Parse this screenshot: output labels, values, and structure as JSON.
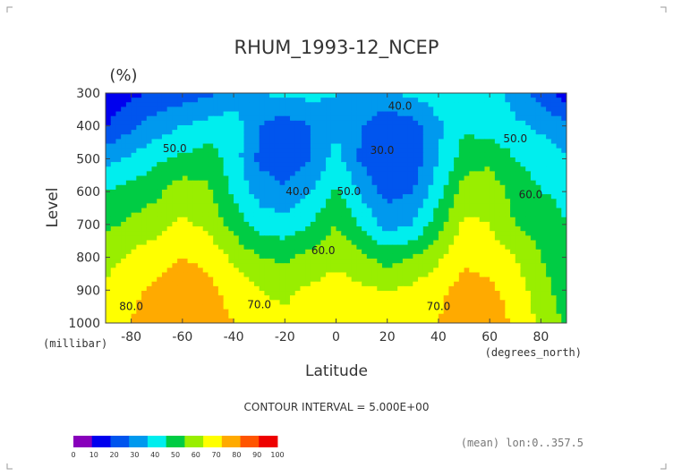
{
  "chart_data": {
    "type": "heatmap",
    "title": "RHUM_1993-12_NCEP",
    "unit_label": "(%)",
    "xlabel": "Latitude",
    "ylabel": "Level",
    "x_units": "(degrees_north)",
    "y_units": "(millibar)",
    "xlim": [
      -90,
      90
    ],
    "ylim": [
      1000,
      300
    ],
    "x_ticks": [
      "-80",
      "-60",
      "-40",
      "-20",
      "0",
      "20",
      "40",
      "60",
      "80"
    ],
    "x_tick_values": [
      -80,
      -60,
      -40,
      -20,
      0,
      20,
      40,
      60,
      80
    ],
    "y_ticks": [
      "300",
      "400",
      "500",
      "600",
      "700",
      "800",
      "900",
      "1000"
    ],
    "y_tick_values": [
      300,
      400,
      500,
      600,
      700,
      800,
      900,
      1000
    ],
    "contour_interval_text": "CONTOUR INTERVAL = 5.000E+00",
    "footnote": "(mean) lon:0..357.5",
    "grid": false,
    "levels": [
      0,
      10,
      20,
      30,
      40,
      50,
      60,
      70,
      80,
      90,
      100
    ],
    "colorbar_labels": [
      "0",
      "10",
      "20",
      "30",
      "40",
      "50",
      "60",
      "70",
      "80",
      "90",
      "100"
    ],
    "colors": [
      "#8800bb",
      "#0000ee",
      "#0055ee",
      "#0099ee",
      "#00eeee",
      "#00cc44",
      "#99ee00",
      "#ffff00",
      "#ffaa00",
      "#ff5500",
      "#ee0000"
    ],
    "x": [
      -90,
      -80,
      -70,
      -60,
      -50,
      -40,
      -30,
      -20,
      -10,
      0,
      10,
      20,
      30,
      40,
      50,
      60,
      70,
      80,
      90
    ],
    "y": [
      300,
      400,
      500,
      600,
      700,
      800,
      900,
      1000
    ],
    "z": [
      [
        10,
        18,
        22,
        25,
        28,
        34,
        40,
        42,
        43,
        40,
        38,
        40,
        42,
        46,
        50,
        48,
        35,
        25,
        15
      ],
      [
        20,
        28,
        35,
        40,
        44,
        45,
        30,
        25,
        30,
        38,
        30,
        22,
        26,
        38,
        48,
        45,
        42,
        38,
        32
      ],
      [
        36,
        42,
        48,
        52,
        55,
        45,
        28,
        22,
        30,
        44,
        28,
        20,
        24,
        40,
        55,
        58,
        50,
        46,
        42
      ],
      [
        50,
        54,
        58,
        66,
        62,
        48,
        36,
        32,
        40,
        52,
        38,
        26,
        30,
        46,
        65,
        66,
        56,
        50,
        48
      ],
      [
        58,
        62,
        66,
        72,
        68,
        56,
        46,
        44,
        50,
        60,
        48,
        36,
        40,
        56,
        72,
        70,
        60,
        55,
        50
      ],
      [
        66,
        72,
        76,
        80,
        77,
        68,
        60,
        58,
        63,
        68,
        62,
        56,
        60,
        68,
        78,
        76,
        70,
        60,
        52
      ],
      [
        72,
        78,
        82,
        86,
        83,
        76,
        70,
        68,
        72,
        74,
        72,
        70,
        72,
        78,
        84,
        82,
        76,
        64,
        55
      ],
      [
        74,
        80,
        86,
        90,
        86,
        80,
        74,
        72,
        75,
        76,
        76,
        76,
        76,
        80,
        86,
        86,
        78,
        68,
        58
      ]
    ],
    "contour_labels": [
      {
        "text": "40.0",
        "x": 25,
        "y": 350
      },
      {
        "text": "30.0",
        "x": 18,
        "y": 485
      },
      {
        "text": "50.0",
        "x": 70,
        "y": 450
      },
      {
        "text": "50.0",
        "x": -63,
        "y": 480
      },
      {
        "text": "40.0",
        "x": -15,
        "y": 610
      },
      {
        "text": "50.0",
        "x": 5,
        "y": 610
      },
      {
        "text": "60.0",
        "x": 76,
        "y": 620
      },
      {
        "text": "60.0",
        "x": -5,
        "y": 790
      },
      {
        "text": "70.0",
        "x": -30,
        "y": 955
      },
      {
        "text": "70.0",
        "x": 40,
        "y": 960
      },
      {
        "text": "80.0",
        "x": -80,
        "y": 960
      }
    ]
  }
}
